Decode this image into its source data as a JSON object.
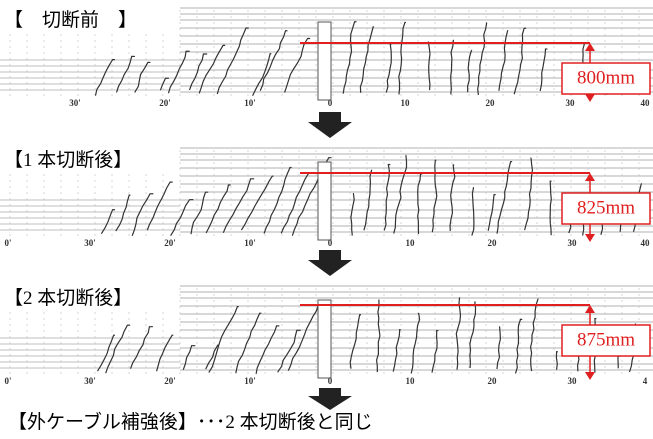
{
  "panels": [
    {
      "label": "【　切断前　】",
      "measurement": "800mm",
      "ticks": [
        "30'",
        "20'",
        "10'",
        "0",
        "10",
        "20",
        "30",
        "40"
      ]
    },
    {
      "label": "【1 本切断後】",
      "measurement": "825mm",
      "ticks": [
        "0'",
        "30'",
        "20'",
        "10'",
        "0",
        "10",
        "20",
        "30",
        "40"
      ]
    },
    {
      "label": "【2 本切断後】",
      "measurement": "875mm",
      "ticks": [
        "0'",
        "30'",
        "20'",
        "10'",
        "0",
        "10",
        "20",
        "30",
        "4"
      ]
    }
  ],
  "footer": "【外ケーブル補強後】･･･2 本切断後と同じ"
}
